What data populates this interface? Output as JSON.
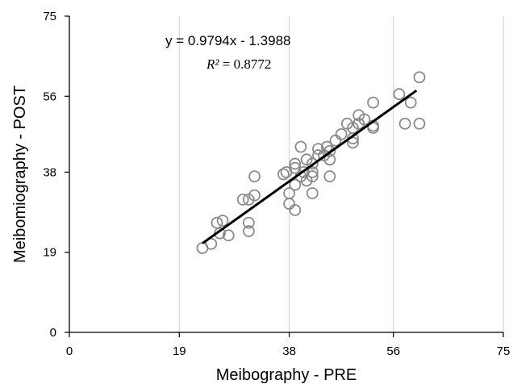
{
  "chart_data": {
    "type": "scatter",
    "title": "",
    "xlabel": "Meibography - PRE",
    "ylabel": "Meibomiography - POST",
    "xlim": [
      0,
      75
    ],
    "ylim": [
      0,
      75
    ],
    "xticks": [
      0,
      19,
      38,
      56,
      75
    ],
    "yticks": [
      0,
      19,
      38,
      56,
      75
    ],
    "grid": "vertical",
    "colors": {
      "marker": "#8a8a8a",
      "trendline": "#000000",
      "grid": "#d9d9d9",
      "axis": "#000000"
    },
    "trendline": {
      "slope": 0.9794,
      "intercept": -1.3988,
      "x_range": [
        23,
        60
      ],
      "equation_text": "y = 0.9794x - 1.3988",
      "r2_label": "R²",
      "r2_value": "= 0.8772"
    },
    "points": [
      {
        "x": 23,
        "y": 20
      },
      {
        "x": 24.5,
        "y": 21
      },
      {
        "x": 25.5,
        "y": 26
      },
      {
        "x": 26.5,
        "y": 26.5
      },
      {
        "x": 26,
        "y": 23.5
      },
      {
        "x": 27.5,
        "y": 23
      },
      {
        "x": 30,
        "y": 31.5
      },
      {
        "x": 31,
        "y": 31.5
      },
      {
        "x": 31,
        "y": 26
      },
      {
        "x": 31,
        "y": 24
      },
      {
        "x": 32,
        "y": 37
      },
      {
        "x": 32,
        "y": 32.5
      },
      {
        "x": 37,
        "y": 37.5
      },
      {
        "x": 37.5,
        "y": 38
      },
      {
        "x": 38,
        "y": 33
      },
      {
        "x": 38,
        "y": 30.5
      },
      {
        "x": 39,
        "y": 29
      },
      {
        "x": 39,
        "y": 35
      },
      {
        "x": 39,
        "y": 40
      },
      {
        "x": 39,
        "y": 39
      },
      {
        "x": 40,
        "y": 44
      },
      {
        "x": 40,
        "y": 37
      },
      {
        "x": 40.5,
        "y": 38
      },
      {
        "x": 41,
        "y": 36
      },
      {
        "x": 41,
        "y": 41
      },
      {
        "x": 42,
        "y": 33
      },
      {
        "x": 42,
        "y": 38
      },
      {
        "x": 42,
        "y": 37
      },
      {
        "x": 42,
        "y": 40
      },
      {
        "x": 43,
        "y": 42
      },
      {
        "x": 43,
        "y": 43.5
      },
      {
        "x": 44,
        "y": 42
      },
      {
        "x": 44.5,
        "y": 44
      },
      {
        "x": 45,
        "y": 37
      },
      {
        "x": 45,
        "y": 41
      },
      {
        "x": 45,
        "y": 43
      },
      {
        "x": 46,
        "y": 45.5
      },
      {
        "x": 47,
        "y": 47
      },
      {
        "x": 48,
        "y": 49.5
      },
      {
        "x": 49,
        "y": 45
      },
      {
        "x": 49,
        "y": 46
      },
      {
        "x": 49,
        "y": 48.5
      },
      {
        "x": 50,
        "y": 51.5
      },
      {
        "x": 50,
        "y": 49.5
      },
      {
        "x": 51,
        "y": 50.5
      },
      {
        "x": 52.5,
        "y": 48.5
      },
      {
        "x": 52.5,
        "y": 49
      },
      {
        "x": 52.5,
        "y": 54.5
      },
      {
        "x": 57,
        "y": 56.5
      },
      {
        "x": 58,
        "y": 49.5
      },
      {
        "x": 59,
        "y": 54.5
      },
      {
        "x": 60.5,
        "y": 60.5
      },
      {
        "x": 60.5,
        "y": 49.5
      }
    ]
  }
}
